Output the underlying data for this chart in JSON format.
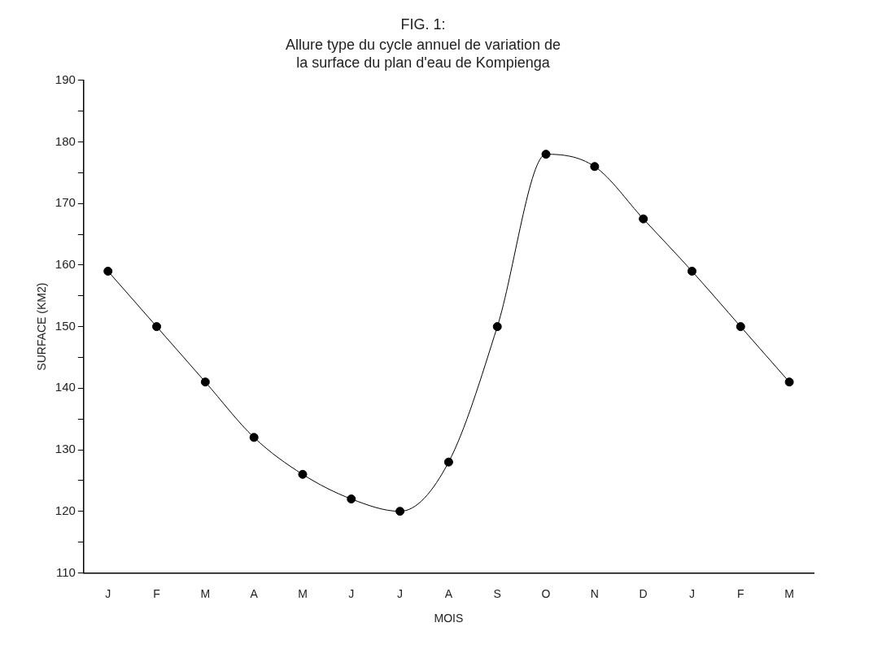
{
  "chart_data": {
    "type": "line",
    "title": "FIG. 1:",
    "subtitle": "Allure type du cycle annuel de variation de\nla surface du plan d'eau de Kompienga",
    "xlabel": "MOIS",
    "ylabel": "SURFACE (KM2)",
    "categories": [
      "J",
      "F",
      "M",
      "A",
      "M",
      "J",
      "J",
      "A",
      "S",
      "O",
      "N",
      "D",
      "J",
      "F",
      "M"
    ],
    "series": [
      {
        "color": "#000000",
        "values": [
          159,
          150,
          141,
          132,
          126,
          122,
          120,
          128,
          150,
          178,
          176,
          167.5,
          159,
          150,
          141
        ]
      }
    ],
    "ylim": [
      110,
      190
    ],
    "yticks": [
      110,
      {
        "value": 115,
        "label": null
      },
      120,
      {
        "value": 125,
        "label": null
      },
      130,
      {
        "value": 135,
        "label": null
      },
      140,
      {
        "value": 145,
        "label": null
      },
      150,
      {
        "value": 155,
        "label": null
      },
      160,
      {
        "value": 165,
        "label": null
      },
      170,
      {
        "value": 175,
        "label": null
      },
      180,
      {
        "value": 185,
        "label": null
      },
      190
    ],
    "grid": false,
    "legend": false,
    "marker": "circle",
    "line_style": "solid"
  }
}
